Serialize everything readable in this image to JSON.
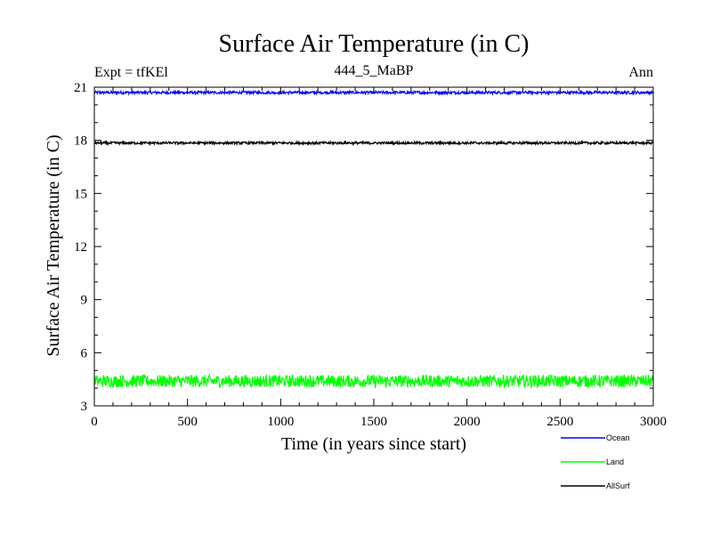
{
  "chart_data": {
    "type": "line",
    "title": "Surface Air Temperature (in C)",
    "subtitle_left": "Expt = tfKEl",
    "subtitle_center": "444_5_MaBP",
    "subtitle_right": "Ann",
    "xlabel": "Time (in years since start)",
    "ylabel": "Surface Air Temperature (in C)",
    "xlim": [
      0,
      3000
    ],
    "ylim": [
      3,
      21
    ],
    "x_ticks": [
      0,
      500,
      1000,
      1500,
      2000,
      2500,
      3000
    ],
    "y_ticks": [
      3,
      6,
      9,
      12,
      15,
      18,
      21
    ],
    "x_minor_step": 100,
    "y_minor_step": 1,
    "grid": false,
    "legend_position": "bottom-right, below plot",
    "series": [
      {
        "name": "Ocean",
        "color": "#0000ff",
        "mean": 20.7,
        "amplitude": 0.08,
        "x_start": 0,
        "x_end": 3000,
        "points": 1200
      },
      {
        "name": "Land",
        "color": "#00ff00",
        "mean": 4.4,
        "amplitude": 0.35,
        "x_start": 0,
        "x_end": 3000,
        "points": 1200
      },
      {
        "name": "AllSurf",
        "color": "#000000",
        "mean": 17.85,
        "amplitude": 0.07,
        "x_start": 0,
        "x_end": 3000,
        "points": 1200
      }
    ]
  }
}
